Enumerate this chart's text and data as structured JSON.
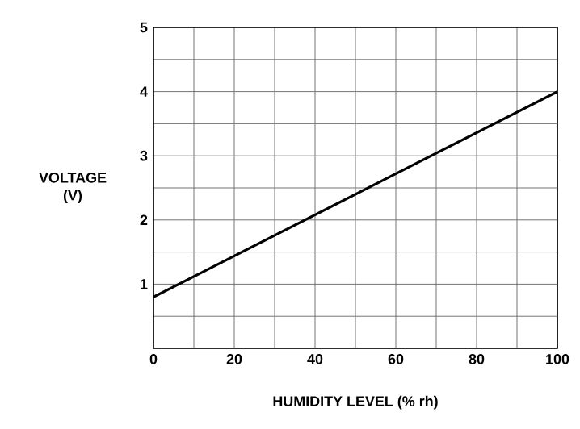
{
  "chart_data": {
    "type": "line",
    "xlabel": "HUMIDITY LEVEL (% rh)",
    "ylabel": "VOLTAGE (V)",
    "x": [
      0,
      100
    ],
    "series": [
      {
        "color": "#000000",
        "values": [
          0.8,
          4.0
        ]
      }
    ],
    "xlim": [
      0,
      100
    ],
    "ylim": [
      0,
      5
    ],
    "xticks": [
      0,
      {
        "value": 10,
        "label": null
      },
      20,
      {
        "value": 30,
        "label": null
      },
      40,
      {
        "value": 50,
        "label": null
      },
      60,
      {
        "value": 70,
        "label": null
      },
      80,
      {
        "value": 90,
        "label": null
      },
      100
    ],
    "yticks": [
      {
        "value": 0,
        "label": null
      },
      {
        "value": 0.5,
        "label": null
      },
      1,
      {
        "value": 1.5,
        "label": null
      },
      2,
      {
        "value": 2.5,
        "label": null
      },
      3,
      {
        "value": 3.5,
        "label": null
      },
      4,
      {
        "value": 4.5,
        "label": null
      },
      5
    ],
    "grid": true,
    "marker": "none",
    "line_style": "solid"
  }
}
